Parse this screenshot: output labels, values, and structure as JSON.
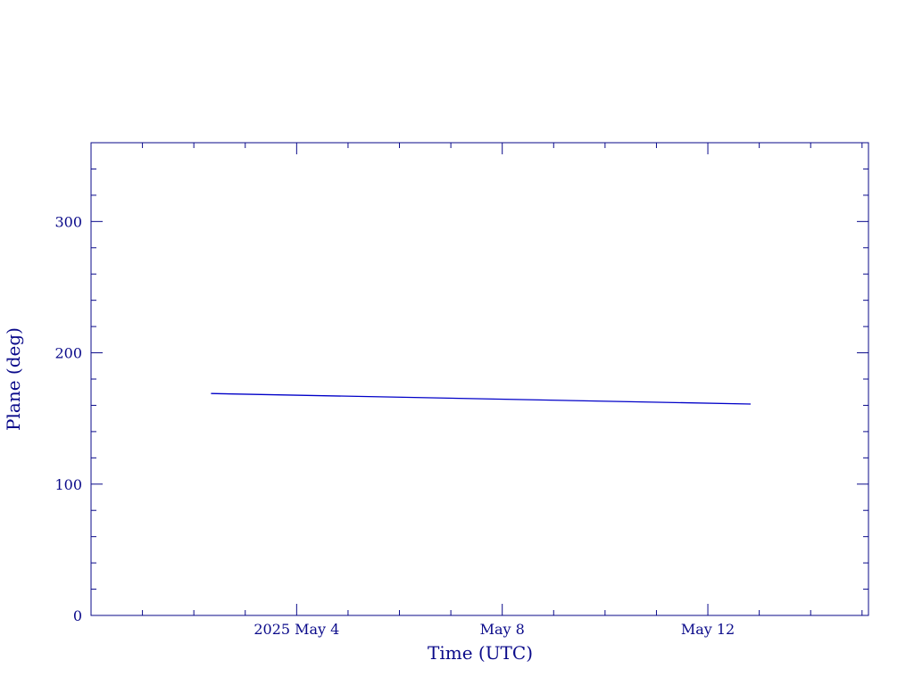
{
  "chart_data": {
    "type": "line",
    "title": "",
    "xlabel": "Time (UTC)",
    "ylabel": "Plane (deg)",
    "x_tick_labels": [
      "2025 May  4",
      "May  8",
      "May 12"
    ],
    "x_major_ticks": [
      "2025-05-04",
      "2025-05-08",
      "2025-05-12"
    ],
    "x_minor_step_days": 1,
    "xlim": [
      "2025-04-30",
      "2025-05-15 03:00"
    ],
    "ylim": [
      0,
      360
    ],
    "y_major_ticks": [
      0,
      100,
      200,
      300
    ],
    "y_tick_labels": [
      "0",
      "100",
      "200",
      "300"
    ],
    "y_minor_step": 20,
    "grid": false,
    "series": [
      {
        "color": "#0000c8",
        "x": [
          "2025-05-02 08:00",
          "2025-05-12 20:00"
        ],
        "y": [
          169,
          161
        ]
      }
    ],
    "colors": {
      "axis": "#0a0a8a",
      "line": "#0000c8",
      "background": "#ffffff"
    }
  }
}
